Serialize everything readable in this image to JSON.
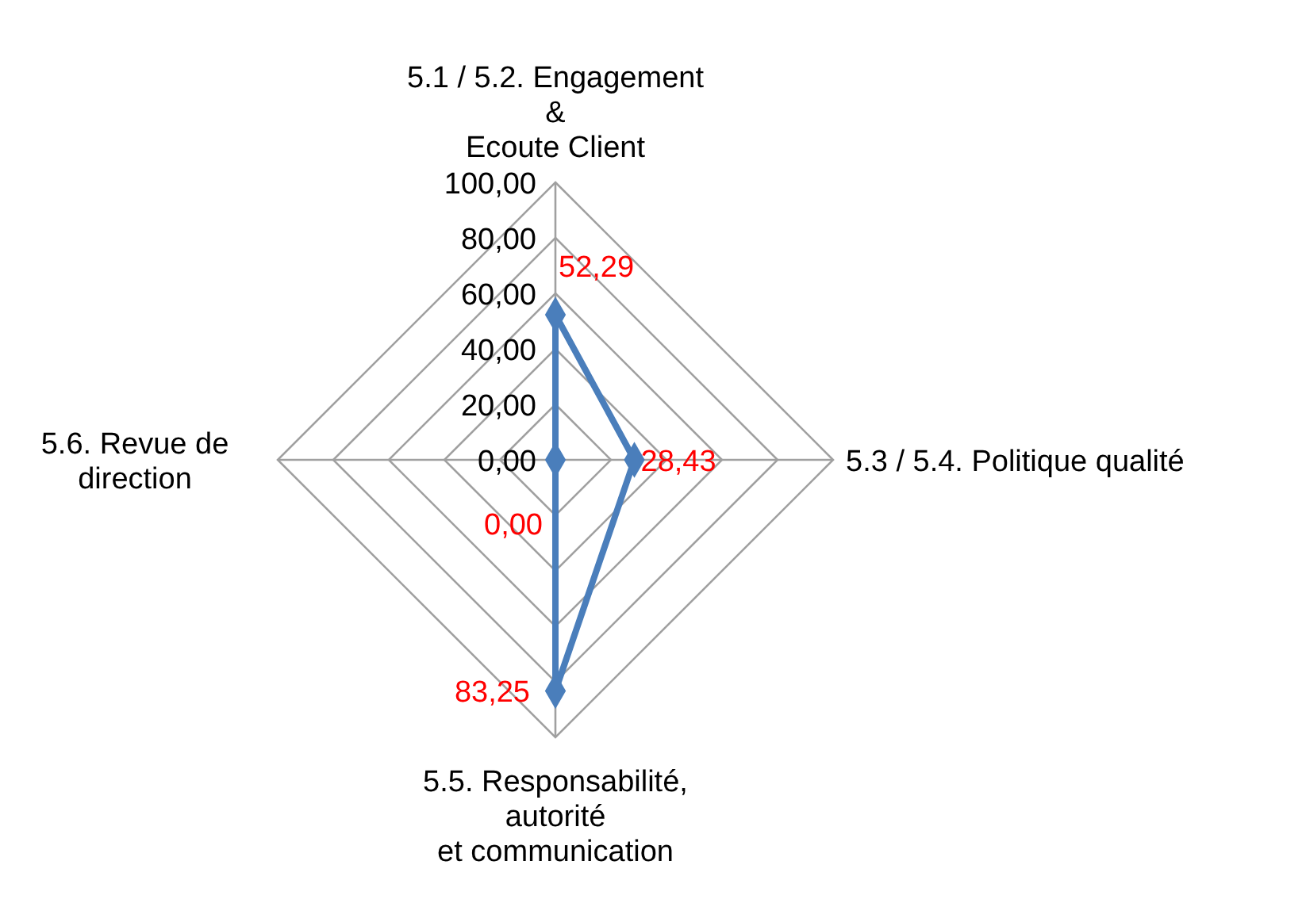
{
  "chart_data": {
    "type": "radar",
    "categories": [
      "5.1 / 5.2. Engagement\n&\nEcoute Client",
      "5.3 / 5.4. Politique qualité",
      "5.5. Responsabilité,\nautorité\net communication",
      "5.6. Revue de\ndirection"
    ],
    "series": [
      {
        "color": "#4a7ebb",
        "values": [
          52.29,
          28.43,
          83.25,
          0
        ],
        "value_labels": [
          "52,29",
          "28,43",
          "83,25",
          "0,00"
        ]
      }
    ],
    "ylim": [
      0,
      100
    ],
    "yticks": [
      {
        "value": 0,
        "label": "0,00"
      },
      {
        "value": 20,
        "label": "20,00"
      },
      {
        "value": 40,
        "label": "40,00"
      },
      {
        "value": 60,
        "label": "60,00"
      },
      {
        "value": 80,
        "label": "80,00"
      },
      {
        "value": 100,
        "label": "100,00"
      }
    ],
    "grid": true,
    "marker": "diamond",
    "line_style": "solid"
  }
}
